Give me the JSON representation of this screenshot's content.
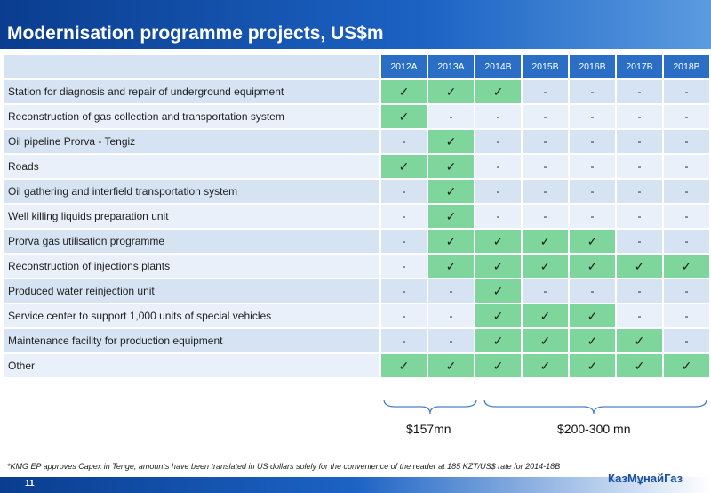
{
  "header": {
    "title": "Modernisation programme projects, US$m"
  },
  "table": {
    "columns": [
      "2012A",
      "2013A",
      "2014B",
      "2015B",
      "2016B",
      "2017B",
      "2018B"
    ],
    "rows": [
      {
        "label": "Station for diagnosis and repair of underground equipment",
        "cells": [
          {
            "text": "✓",
            "fill": "#7fd69c"
          },
          {
            "text": "✓",
            "fill": "#7fd69c"
          },
          {
            "text": "✓",
            "fill": "#7fd69c"
          },
          "-",
          "-",
          "-",
          "-"
        ]
      },
      {
        "label": "Reconstruction of gas collection and transportation system",
        "cells": [
          {
            "text": "✓",
            "fill": "#7fd69c"
          },
          "-",
          "-",
          "-",
          "-",
          "-",
          "-"
        ]
      },
      {
        "label": "Oil pipeline Prorva - Tengiz",
        "cells": [
          "-",
          {
            "text": "✓",
            "fill": "#7fd69c"
          },
          "-",
          "-",
          "-",
          "-",
          "-"
        ]
      },
      {
        "label": "Roads",
        "cells": [
          {
            "text": "✓",
            "fill": "#7fd69c"
          },
          {
            "text": "✓",
            "fill": "#7fd69c"
          },
          "-",
          "-",
          "-",
          "-",
          "-"
        ]
      },
      {
        "label": "Oil gathering and interfield transportation system",
        "cells": [
          "-",
          {
            "text": "✓",
            "fill": "#7fd69c"
          },
          "-",
          "-",
          "-",
          "-",
          "-"
        ]
      },
      {
        "label": "Well killing liquids preparation unit",
        "cells": [
          "-",
          {
            "text": "✓",
            "fill": "#7fd69c"
          },
          "-",
          "-",
          "-",
          "-",
          "-"
        ]
      },
      {
        "label": "Prorva gas utilisation programme",
        "cells": [
          "-",
          {
            "text": "✓",
            "fill": "#7fd69c"
          },
          {
            "text": "✓",
            "fill": "#7fd69c"
          },
          {
            "text": "✓",
            "fill": "#7fd69c"
          },
          {
            "text": "✓",
            "fill": "#7fd69c"
          },
          "-",
          "-"
        ]
      },
      {
        "label": "Reconstruction of injections plants",
        "cells": [
          "-",
          {
            "text": "✓",
            "fill": "#7fd69c"
          },
          {
            "text": "✓",
            "fill": "#7fd69c"
          },
          {
            "text": "✓",
            "fill": "#7fd69c"
          },
          {
            "text": "✓",
            "fill": "#7fd69c"
          },
          {
            "text": "✓",
            "fill": "#7fd69c"
          },
          {
            "text": "✓",
            "fill": "#7fd69c"
          }
        ]
      },
      {
        "label": "Produced water reinjection unit",
        "cells": [
          "-",
          "-",
          {
            "text": "✓",
            "fill": "#7fd69c"
          },
          "-",
          "-",
          "-",
          "-"
        ]
      },
      {
        "label": "Service center to support 1,000 units of special vehicles",
        "cells": [
          "-",
          "-",
          {
            "text": "✓",
            "fill": "#7fd69c"
          },
          {
            "text": "✓",
            "fill": "#7fd69c"
          },
          {
            "text": "✓",
            "fill": "#7fd69c"
          },
          "-",
          "-"
        ]
      },
      {
        "label": "Maintenance facility for production equipment",
        "cells": [
          "-",
          "-",
          {
            "text": "✓",
            "fill": "#7fd69c"
          },
          {
            "text": "✓",
            "fill": "#7fd69c"
          },
          {
            "text": "✓",
            "fill": "#7fd69c"
          },
          {
            "text": "✓",
            "fill": "#7fd69c"
          },
          "-"
        ]
      },
      {
        "label": "Other",
        "cells": [
          {
            "text": "✓",
            "fill": "#7fd69c"
          },
          {
            "text": "✓",
            "fill": "#7fd69c"
          },
          {
            "text": "✓",
            "fill": "#7fd69c"
          },
          {
            "text": "✓",
            "fill": "#7fd69c"
          },
          {
            "text": "✓",
            "fill": "#7fd69c"
          },
          {
            "text": "✓",
            "fill": "#7fd69c"
          },
          {
            "text": "✓",
            "fill": "#7fd69c"
          }
        ]
      }
    ]
  },
  "totals": [
    "$157mn",
    "$200-300 mn"
  ],
  "footnote": "*KMG EP approves Capex in Tenge, amounts have been translated in US dollars solely for the convenience of the reader at 185 KZT/US$ rate for 2014-18B",
  "footer": {
    "page": "11",
    "logo": "КазМұнайГаз"
  }
}
